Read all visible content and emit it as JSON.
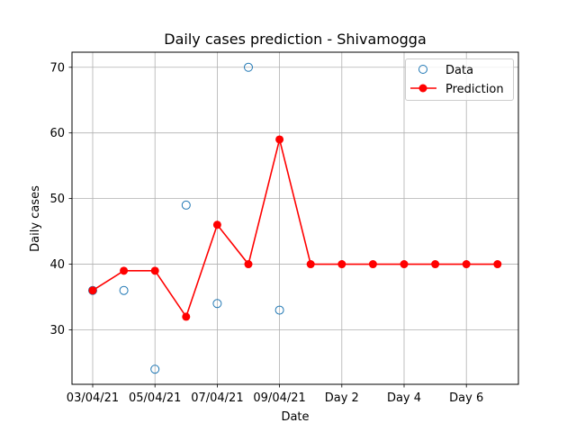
{
  "chart_data": {
    "type": "line",
    "title": "Daily cases prediction - Shivamogga",
    "xlabel": "Date",
    "ylabel": "Daily cases",
    "x_tick_labels": [
      "03/04/21",
      "05/04/21",
      "07/04/21",
      "09/04/21",
      "Day 2",
      "Day 4",
      "Day 6"
    ],
    "y_ticks": [
      30,
      40,
      50,
      60,
      70
    ],
    "ylim": [
      21.7,
      72.3
    ],
    "grid": true,
    "legend_position": "top-right",
    "series": [
      {
        "name": "Data",
        "style": "hollow-circle markers",
        "color": "#1f77b4",
        "x": [
          0,
          1,
          2,
          3,
          4,
          5,
          6
        ],
        "values": [
          36,
          36,
          24,
          49,
          34,
          70,
          33
        ]
      },
      {
        "name": "Prediction",
        "style": "line with filled markers",
        "color": "#ff0000",
        "x": [
          0,
          1,
          2,
          3,
          4,
          5,
          6,
          7,
          8,
          9,
          10,
          11,
          12,
          13
        ],
        "values": [
          36,
          39,
          39,
          32,
          46,
          40,
          59,
          40,
          40,
          40,
          40,
          40,
          40,
          40
        ]
      }
    ]
  }
}
